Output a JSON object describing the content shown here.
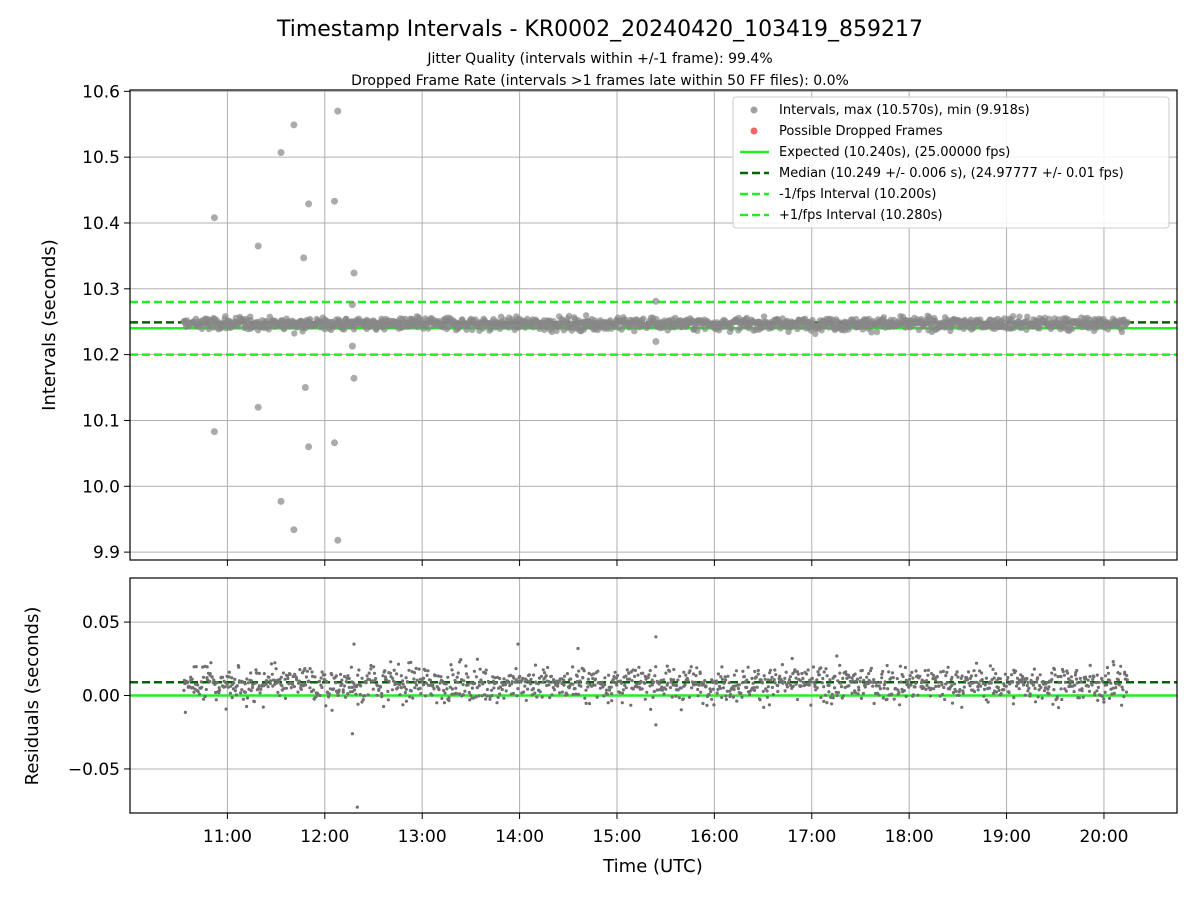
{
  "header": {
    "title": "Timestamp Intervals - KR0002_20240420_103419_859217",
    "subtitle_line1": "Jitter Quality (intervals within +/-1 frame): 99.4%",
    "subtitle_line2": "Dropped Frame Rate (intervals >1 frames late within 50 FF files): 0.0%"
  },
  "legend": {
    "intervals": "Intervals, max (10.570s), min (9.918s)",
    "dropped": "Possible Dropped Frames",
    "expected": "Expected (10.240s), (25.00000 fps)",
    "median": "Median (10.249 +/- 0.006 s), (24.97777 +/- 0.01 fps)",
    "minus": "-1/fps Interval (10.200s)",
    "plus": "+1/fps Interval (10.280s)"
  },
  "colors": {
    "points": "#888888",
    "residual_points": "#707070",
    "dropped": "#f04040",
    "expected": "#22ee22",
    "median": "#006400",
    "grid": "#b0b0b0"
  },
  "chart_data": [
    {
      "type": "scatter",
      "ylabel": "Intervals (seconds)",
      "ylim": [
        9.888,
        10.602
      ],
      "yticks": [
        9.9,
        10.0,
        10.1,
        10.2,
        10.3,
        10.4,
        10.5,
        10.6
      ],
      "ytick_labels": [
        "9.9",
        "10.0",
        "10.1",
        "10.2",
        "10.3",
        "10.4",
        "10.5",
        "10.6"
      ],
      "xlim_hours": [
        10.0,
        20.75
      ],
      "hlines": {
        "expected": 10.24,
        "median": 10.249,
        "minus_interval": 10.2,
        "plus_interval": 10.28
      },
      "band_points": {
        "x_range_hours": [
          10.55,
          20.25
        ],
        "center": 10.247,
        "spread": 0.006,
        "count": 1400,
        "max": 10.57,
        "min": 9.918
      },
      "outliers": [
        {
          "x": "10:52",
          "y": 10.408
        },
        {
          "x": "10:52",
          "y": 10.083
        },
        {
          "x": "11:19",
          "y": 10.365
        },
        {
          "x": "11:19",
          "y": 10.12
        },
        {
          "x": "11:33",
          "y": 10.507
        },
        {
          "x": "11:33",
          "y": 9.977
        },
        {
          "x": "11:41",
          "y": 10.549
        },
        {
          "x": "11:41",
          "y": 9.934
        },
        {
          "x": "11:47",
          "y": 10.347
        },
        {
          "x": "11:48",
          "y": 10.15
        },
        {
          "x": "11:50",
          "y": 10.429
        },
        {
          "x": "11:50",
          "y": 10.06
        },
        {
          "x": "12:06",
          "y": 10.433
        },
        {
          "x": "12:06",
          "y": 10.066
        },
        {
          "x": "12:08",
          "y": 10.57
        },
        {
          "x": "12:08",
          "y": 9.918
        },
        {
          "x": "12:18",
          "y": 10.324
        },
        {
          "x": "12:18",
          "y": 10.164
        },
        {
          "x": "12:17",
          "y": 10.276
        },
        {
          "x": "12:17",
          "y": 10.213
        },
        {
          "x": "15:24",
          "y": 10.281
        },
        {
          "x": "15:24",
          "y": 10.22
        }
      ]
    },
    {
      "type": "scatter",
      "ylabel": "Residuals (seconds)",
      "xlabel": "Time (UTC)",
      "ylim": [
        -0.08,
        0.08
      ],
      "yticks": [
        -0.05,
        0.0,
        0.05
      ],
      "ytick_labels": [
        "−0.05",
        "0.00",
        "0.05"
      ],
      "xlim_hours": [
        10.0,
        20.75
      ],
      "xticks_hours": [
        11,
        12,
        13,
        14,
        15,
        16,
        17,
        18,
        19,
        20
      ],
      "xtick_labels": [
        "11:00",
        "12:00",
        "13:00",
        "14:00",
        "15:00",
        "16:00",
        "17:00",
        "18:00",
        "19:00",
        "20:00"
      ],
      "hlines": {
        "zero": 0.0,
        "median": 0.009
      },
      "band_points": {
        "x_range_hours": [
          10.55,
          20.25
        ],
        "center": 0.008,
        "spread": 0.008,
        "count": 1400,
        "max": 0.04,
        "min": -0.076
      }
    }
  ]
}
